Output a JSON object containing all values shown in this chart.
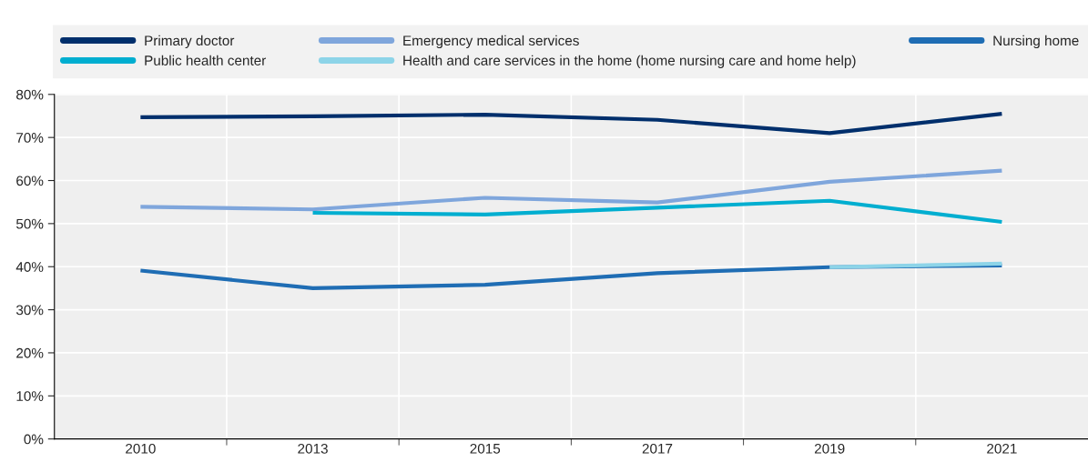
{
  "chart_data": {
    "type": "line",
    "categories": [
      "2010",
      "2013",
      "2015",
      "2017",
      "2019",
      "2021"
    ],
    "series": [
      {
        "name": "Primary doctor",
        "color": "#002f6c",
        "values": [
          74.7,
          74.9,
          75.3,
          74.1,
          71.0,
          75.5
        ]
      },
      {
        "name": "Public health center",
        "color": "#00aed0",
        "values": [
          null,
          52.5,
          52.1,
          53.7,
          55.3,
          50.4
        ]
      },
      {
        "name": "Emergency medical services",
        "color": "#7fa6dc",
        "values": [
          53.9,
          53.3,
          56.0,
          54.9,
          59.7,
          62.3
        ]
      },
      {
        "name": "Health and care services in the home (home nursing care and home help)",
        "color": "#8dd4e8",
        "values": [
          null,
          null,
          null,
          null,
          39.9,
          40.7
        ]
      },
      {
        "name": "Nursing home",
        "color": "#1f6db4",
        "values": [
          39.1,
          35.0,
          35.8,
          38.5,
          39.9,
          40.3
        ]
      }
    ],
    "ylim": [
      0,
      80
    ],
    "yticks": [
      {
        "value": 0,
        "label": "0%"
      },
      {
        "value": 10,
        "label": "10%"
      },
      {
        "value": 20,
        "label": "20%"
      },
      {
        "value": 30,
        "label": "30%"
      },
      {
        "value": 40,
        "label": "40%"
      },
      {
        "value": 50,
        "label": "50%"
      },
      {
        "value": 60,
        "label": "60%"
      },
      {
        "value": 70,
        "label": "70%"
      },
      {
        "value": 80,
        "label": "80%"
      }
    ],
    "grid": true,
    "legend": "top",
    "marker": "none",
    "line_style": "solid"
  }
}
